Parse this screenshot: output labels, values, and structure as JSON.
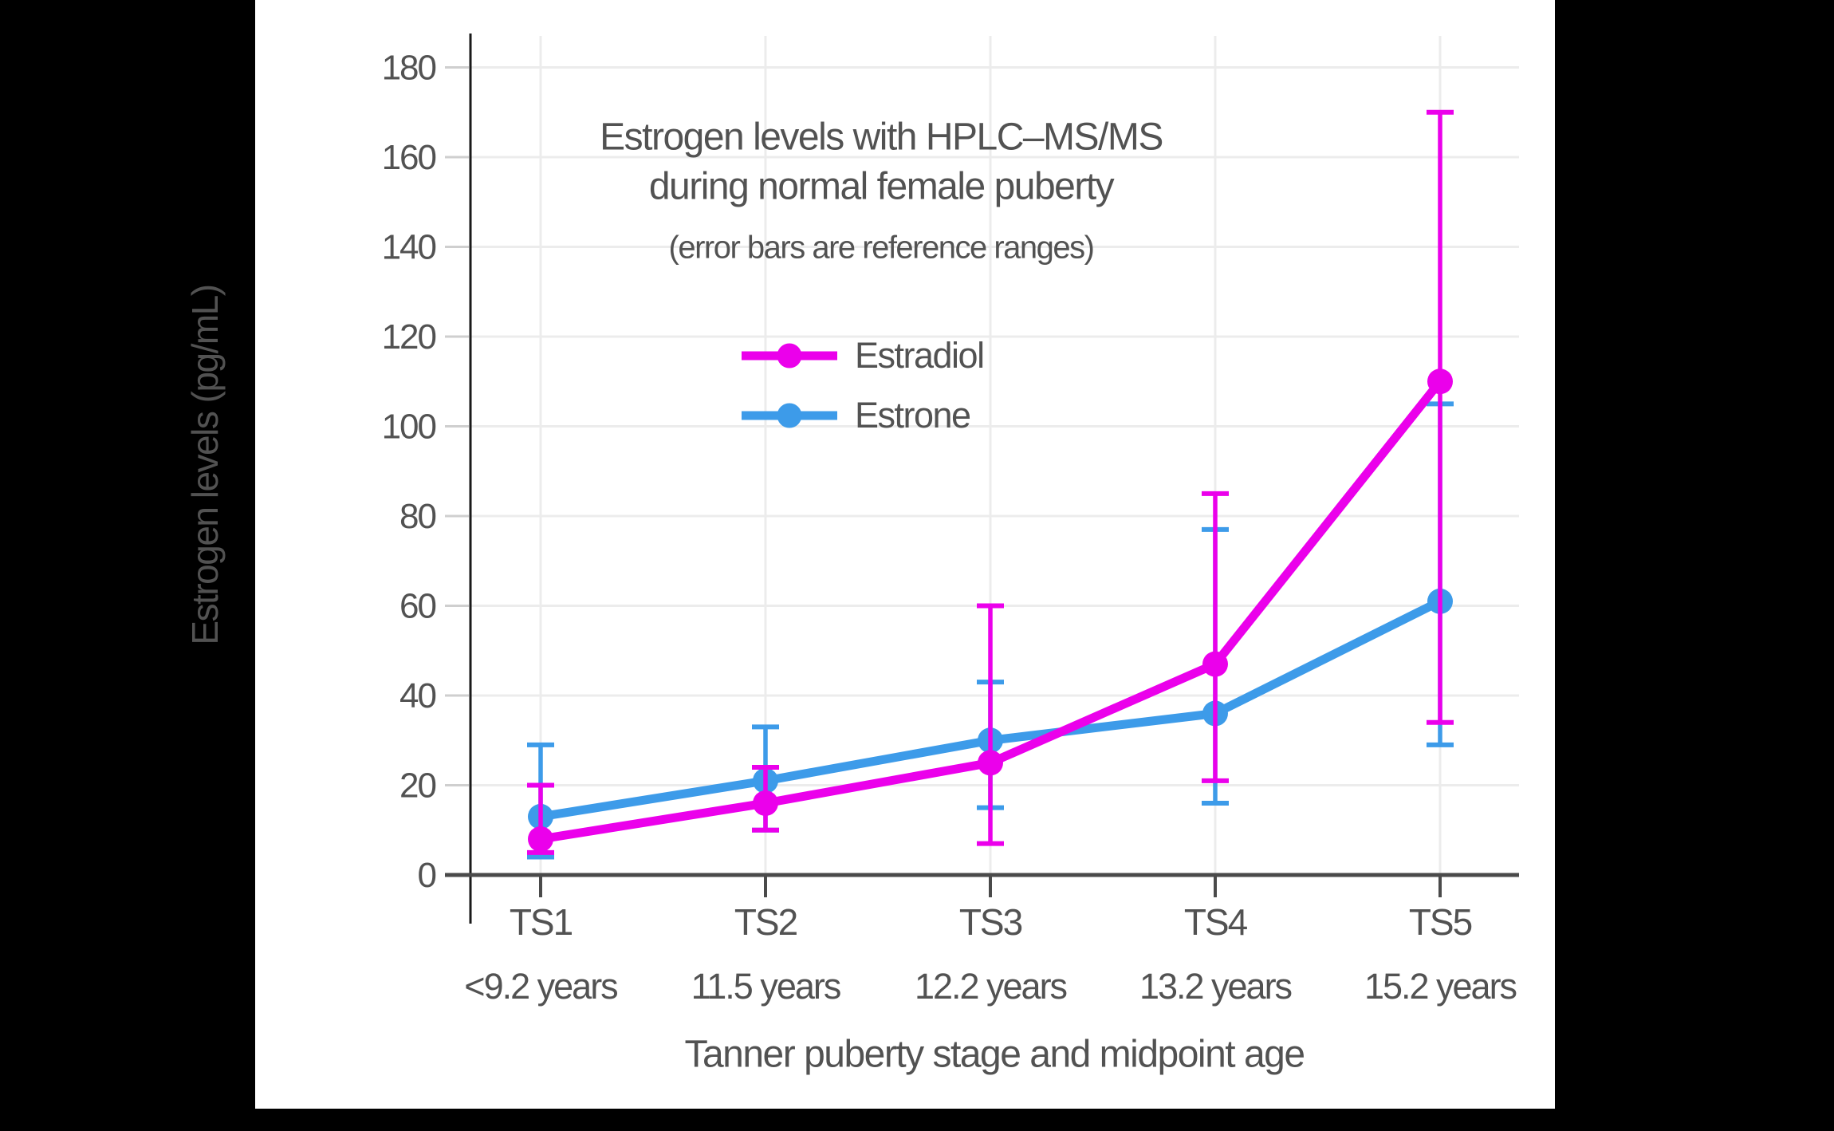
{
  "colors": {
    "background": "#000000",
    "panel": "#ffffff",
    "text": "#525252",
    "grid": "#ececec",
    "axis_x": "#4a4a4a",
    "axis_y": "#1a1a1a",
    "tick_minor": "#cfcfcf",
    "estradiol": "#EB00EB",
    "estrone": "#3D9BE9"
  },
  "chart_data": {
    "type": "line",
    "title_lines": [
      "Estrogen levels with HPLC–MS/MS",
      "during normal female puberty"
    ],
    "subtitle": "(error bars are reference ranges)",
    "xlabel": "Tanner puberty stage and midpoint age",
    "ylabel": "Estrogen levels (pg/mL)",
    "categories": [
      "TS1",
      "TS2",
      "TS3",
      "TS4",
      "TS5"
    ],
    "category_sublabels": [
      "<9.2 years",
      "11.5 years",
      "12.2 years",
      "13.2 years",
      "15.2 years"
    ],
    "y_ticks": [
      0,
      20,
      40,
      60,
      80,
      100,
      120,
      140,
      160,
      180
    ],
    "ylim": [
      0,
      187
    ],
    "grid": true,
    "error_bars_meaning": "reference ranges",
    "legend_position": "upper center-left, below subtitle",
    "series": [
      {
        "name": "Estradiol",
        "color": "#EB00EB",
        "values": [
          8,
          16,
          25,
          47,
          110
        ],
        "err_low": [
          5,
          10,
          7,
          21,
          34
        ],
        "err_high": [
          20,
          24,
          60,
          85,
          170
        ]
      },
      {
        "name": "Estrone",
        "color": "#3D9BE9",
        "values": [
          13,
          21,
          30,
          36,
          61
        ],
        "err_low": [
          4,
          10,
          15,
          16,
          29
        ],
        "err_high": [
          29,
          33,
          43,
          77,
          105
        ]
      }
    ]
  }
}
